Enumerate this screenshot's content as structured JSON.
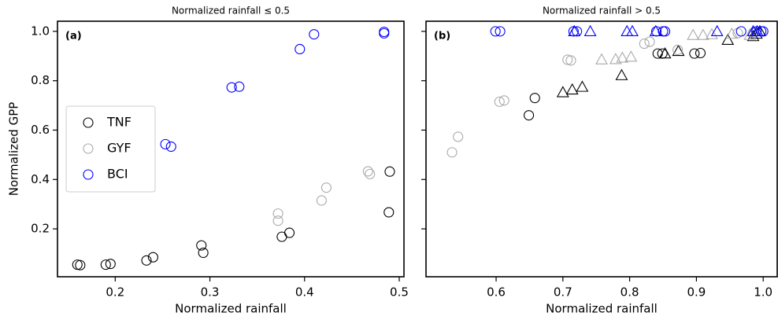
{
  "chart_data": [
    {
      "type": "scatter",
      "title": "Normalized rainfall  ≤ 0.5",
      "panel_label": "(a)",
      "x_label": "Normalized rainfall",
      "y_label": "Normalized GPP",
      "xlim": [
        0.139,
        0.505
      ],
      "ylim": [
        0.006,
        1.041
      ],
      "xticks": [
        0.2,
        0.3,
        0.4,
        0.5
      ],
      "yticks": [
        0.2,
        0.4,
        0.6,
        0.8,
        {
          "value": 1,
          "label": "1.0"
        }
      ],
      "legend": "center left",
      "series": [
        {
          "name": "TNF",
          "color": "#000000",
          "marker": "circle",
          "x": [
            0.16,
            0.163,
            0.19,
            0.195,
            0.233,
            0.24,
            0.291,
            0.293,
            0.376,
            0.384,
            0.489,
            0.49
          ],
          "values": [
            0.055,
            0.053,
            0.055,
            0.058,
            0.072,
            0.085,
            0.133,
            0.103,
            0.168,
            0.184,
            0.267,
            0.432
          ]
        },
        {
          "name": "GYF",
          "color": "#aaaaaa",
          "marker": "circle",
          "x": [
            0.372,
            0.372,
            0.418,
            0.423,
            0.467,
            0.469
          ],
          "values": [
            0.262,
            0.233,
            0.315,
            0.367,
            0.433,
            0.422
          ]
        },
        {
          "name": "BCI",
          "color": "#0000ff",
          "marker": "circle",
          "x": [
            0.253,
            0.259,
            0.323,
            0.331,
            0.395,
            0.41,
            0.484,
            0.484
          ],
          "values": [
            0.543,
            0.533,
            0.773,
            0.776,
            0.928,
            0.988,
            0.998,
            0.992
          ]
        }
      ]
    },
    {
      "type": "scatter",
      "title": "Normalized rainfall  > 0.5",
      "panel_label": "(b)",
      "x_label": "Normalized rainfall",
      "xlim": [
        0.495,
        1.021
      ],
      "ylim": [
        0.006,
        1.041
      ],
      "xticks": [
        0.6,
        0.7,
        0.8,
        0.9,
        {
          "value": 1,
          "label": "1.0"
        }
      ],
      "yticks": [
        0.2,
        0.4,
        0.6,
        0.8,
        1
      ],
      "ytick_labels": false,
      "series": [
        {
          "color": "#000000",
          "marker": "circle",
          "x": [
            0.649,
            0.658,
            0.842,
            0.849,
            0.897,
            0.906
          ],
          "values": [
            0.66,
            0.73,
            0.91,
            0.91,
            0.91,
            0.912
          ]
        },
        {
          "color": "#000000",
          "marker": "triangle",
          "x": [
            0.7,
            0.714,
            0.729,
            0.788,
            0.853,
            0.873,
            0.947,
            0.985,
            0.99,
            0.995
          ],
          "values": [
            0.753,
            0.764,
            0.775,
            0.822,
            0.91,
            0.92,
            0.965,
            0.98,
            0.99,
            1.0
          ]
        },
        {
          "color": "#aaaaaa",
          "marker": "circle",
          "x": [
            0.534,
            0.543,
            0.605,
            0.612,
            0.707,
            0.712,
            0.822,
            0.83,
            0.872,
            0.962,
            0.985
          ],
          "values": [
            0.51,
            0.573,
            0.715,
            0.72,
            0.885,
            0.882,
            0.95,
            0.958,
            0.925,
            0.993,
            0.995
          ]
        },
        {
          "color": "#aaaaaa",
          "marker": "triangle",
          "x": [
            0.758,
            0.779,
            0.789,
            0.802,
            0.895,
            0.91,
            0.923,
            0.953,
            0.98
          ],
          "values": [
            0.886,
            0.887,
            0.893,
            0.897,
            0.985,
            0.985,
            0.988,
            0.99,
            0.985
          ]
        },
        {
          "color": "#0000ff",
          "marker": "circle",
          "x": [
            0.599,
            0.606,
            0.716,
            0.721,
            0.84,
            0.85,
            0.853,
            0.967,
            0.99,
            0.997,
            1.0
          ],
          "values": [
            1.0,
            1.0,
            1.0,
            1.0,
            1.0,
            1.0,
            1.0,
            1.0,
            1.0,
            1.0,
            1.0
          ]
        },
        {
          "color": "#0000ff",
          "marker": "triangle",
          "x": [
            0.717,
            0.741,
            0.796,
            0.804,
            0.839,
            0.931,
            0.985,
            0.991
          ],
          "values": [
            1.0,
            1.0,
            1.0,
            1.0,
            1.0,
            1.0,
            1.0,
            1.0
          ]
        }
      ]
    }
  ]
}
